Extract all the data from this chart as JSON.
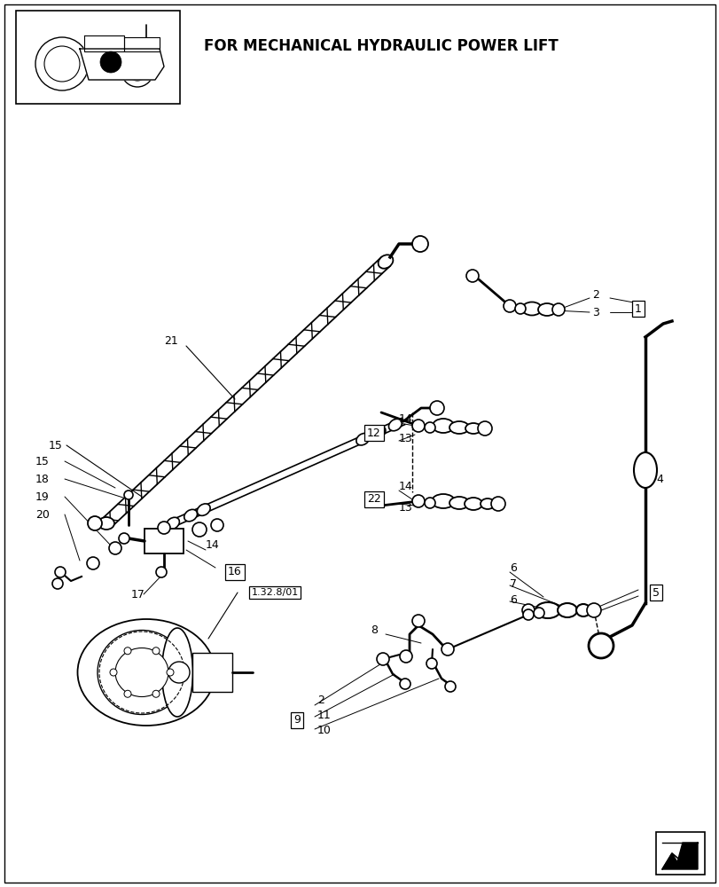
{
  "title": "FOR MECHANICAL HYDRAULIC POWER LIFT",
  "bg_color": "#ffffff",
  "line_color": "#000000",
  "label_fontsize": 8.5
}
